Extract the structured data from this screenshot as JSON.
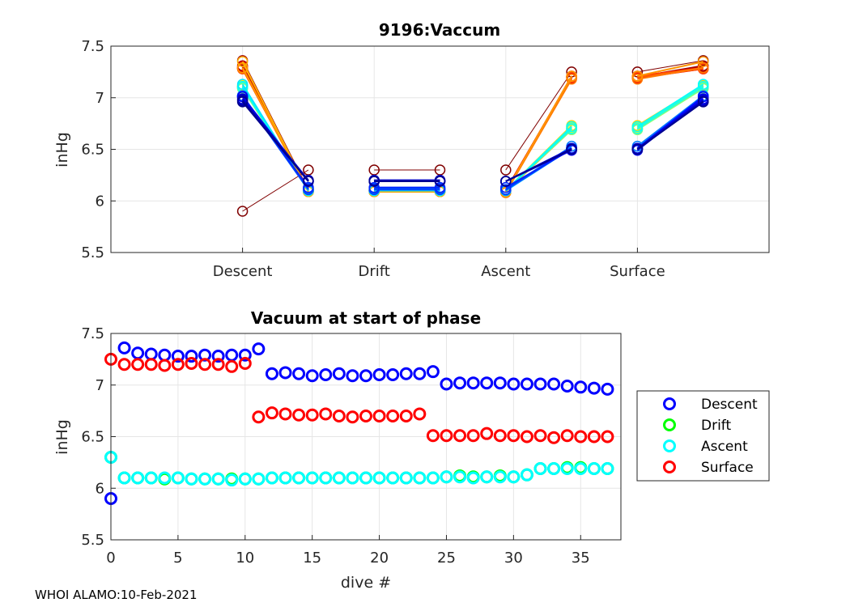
{
  "footer": "WHOI ALAMO:10-Feb-2021",
  "chart_data": [
    {
      "type": "line",
      "title": "9196:Vaccum",
      "ylabel": "inHg",
      "ylim": [
        5.5,
        7.5
      ],
      "yticks": [
        5.5,
        6,
        6.5,
        7,
        7.5
      ],
      "yticklabels": [
        "5.5",
        "6",
        "6.5",
        "7",
        "7.5"
      ],
      "xlim": [
        0,
        10
      ],
      "xticks": [
        2,
        4,
        6,
        8
      ],
      "xticklabels": [
        "Descent",
        "Drift",
        "Ascent",
        "Surface"
      ],
      "grid": true,
      "segments": [
        {
          "x": [
            2,
            3
          ],
          "y_from": "descent",
          "y_to": "drift"
        },
        {
          "x": [
            4,
            5
          ],
          "y_from": "drift",
          "y_to": "drift"
        },
        {
          "x": [
            6,
            7
          ],
          "y_from": "ascent",
          "y_to": "surface"
        },
        {
          "x": [
            8,
            9
          ],
          "y_from": "surface",
          "y_to": "surface_end"
        }
      ],
      "colormap": [
        "#00008f",
        "#0000ff",
        "#0080ff",
        "#00ffff",
        "#80ff80",
        "#ffff00",
        "#ff8000",
        "#ff0000",
        "#800000"
      ],
      "note": "one line per dive; colour from dark blue (latest dive) to dark red (dive 0)"
    },
    {
      "type": "scatter",
      "title": "Vacuum at start of phase",
      "xlabel": "dive #",
      "ylabel": "inHg",
      "xlim": [
        0,
        38
      ],
      "ylim": [
        5.5,
        7.5
      ],
      "xticks": [
        0,
        5,
        10,
        15,
        20,
        25,
        30,
        35
      ],
      "yticks": [
        5.5,
        6,
        6.5,
        7,
        7.5
      ],
      "yticklabels": [
        "5.5",
        "6",
        "6.5",
        "7",
        "7.5"
      ],
      "grid": true,
      "legend_position": "outside-right",
      "x": [
        0,
        1,
        2,
        3,
        4,
        5,
        6,
        7,
        8,
        9,
        10,
        11,
        12,
        13,
        14,
        15,
        16,
        17,
        18,
        19,
        20,
        21,
        22,
        23,
        24,
        25,
        26,
        27,
        28,
        29,
        30,
        31,
        32,
        33,
        34,
        35,
        36,
        37
      ],
      "series": [
        {
          "name": "Descent",
          "color": "#0000ff",
          "values": [
            5.9,
            7.36,
            7.31,
            7.3,
            7.29,
            7.28,
            7.28,
            7.29,
            7.28,
            7.29,
            7.29,
            7.35,
            7.11,
            7.12,
            7.11,
            7.09,
            7.1,
            7.11,
            7.09,
            7.09,
            7.1,
            7.1,
            7.11,
            7.11,
            7.13,
            7.01,
            7.02,
            7.02,
            7.02,
            7.02,
            7.01,
            7.01,
            7.01,
            7.01,
            6.99,
            6.98,
            6.97,
            6.96
          ]
        },
        {
          "name": "Drift",
          "color": "#00ff00",
          "values": [
            6.3,
            6.1,
            6.1,
            6.1,
            6.09,
            6.1,
            6.09,
            6.09,
            6.09,
            6.09,
            6.09,
            6.09,
            6.1,
            6.1,
            6.1,
            6.1,
            6.1,
            6.1,
            6.1,
            6.1,
            6.1,
            6.1,
            6.1,
            6.1,
            6.1,
            6.11,
            6.12,
            6.11,
            6.11,
            6.12,
            6.11,
            6.13,
            6.19,
            6.19,
            6.2,
            6.2,
            6.19,
            6.19
          ]
        },
        {
          "name": "Ascent",
          "color": "#00ffff",
          "values": [
            6.3,
            6.1,
            6.1,
            6.1,
            6.1,
            6.1,
            6.09,
            6.09,
            6.09,
            6.08,
            6.09,
            6.09,
            6.1,
            6.1,
            6.1,
            6.1,
            6.1,
            6.1,
            6.1,
            6.1,
            6.1,
            6.1,
            6.1,
            6.1,
            6.1,
            6.11,
            6.11,
            6.1,
            6.11,
            6.11,
            6.11,
            6.13,
            6.19,
            6.19,
            6.19,
            6.19,
            6.19,
            6.19
          ]
        },
        {
          "name": "Surface",
          "color": "#ff0000",
          "values": [
            7.25,
            7.2,
            7.2,
            7.2,
            7.19,
            7.2,
            7.21,
            7.2,
            7.2,
            7.18,
            7.21,
            6.69,
            6.73,
            6.72,
            6.71,
            6.71,
            6.72,
            6.7,
            6.69,
            6.7,
            6.7,
            6.7,
            6.7,
            6.72,
            6.51,
            6.51,
            6.51,
            6.51,
            6.53,
            6.51,
            6.51,
            6.5,
            6.51,
            6.49,
            6.51,
            6.5,
            6.5,
            6.5
          ]
        }
      ]
    }
  ]
}
